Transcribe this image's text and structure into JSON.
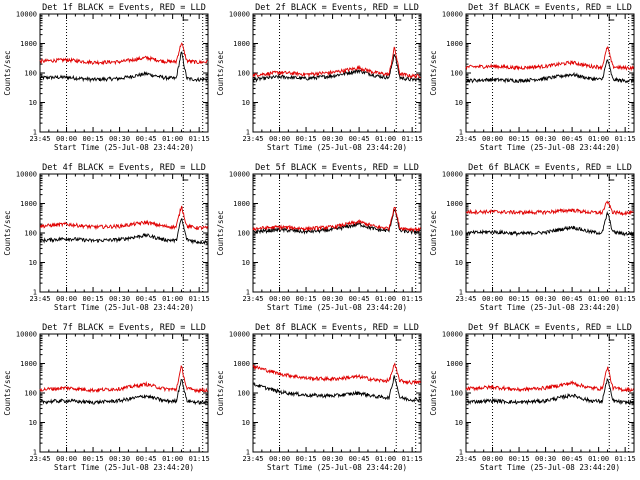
{
  "figure": {
    "rows": 3,
    "cols": 3,
    "colors": {
      "events": "#000000",
      "lld": "#e00000",
      "axes": "#000000",
      "background": "#ffffff"
    }
  },
  "chart_data": [
    {
      "type": "line",
      "title": "Det 1f BLACK = Events, RED = LLD",
      "xlabel": "Start Time (25-Jul-08 23:44:20)",
      "ylabel": "Counts/sec",
      "y_scale": "log",
      "ylim": [
        1,
        10000
      ],
      "xlim": [
        "23:45",
        "01:20"
      ],
      "x_tick_labels": [
        "23:45",
        "00:00",
        "00:15",
        "00:30",
        "00:45",
        "01:00",
        "01:15"
      ],
      "y_tick_labels": [
        "1",
        "10",
        "100",
        "1000",
        "10000"
      ],
      "dotted_vertical_lines": [
        "00:00",
        "01:06",
        "01:17"
      ],
      "grid": false,
      "x": [
        "23:45",
        "00:00",
        "00:15",
        "00:30",
        "00:45",
        "00:55",
        "01:02",
        "01:05",
        "01:08",
        "01:14",
        "01:20"
      ],
      "series": [
        {
          "name": "Events",
          "values": [
            70,
            72,
            60,
            65,
            95,
            70,
            65,
            520,
            65,
            60,
            62
          ]
        },
        {
          "name": "LLD",
          "values": [
            250,
            280,
            230,
            240,
            330,
            250,
            240,
            1100,
            260,
            230,
            240
          ]
        }
      ]
    },
    {
      "type": "line",
      "title": "Det 2f BLACK = Events, RED = LLD",
      "xlabel": "Start Time (25-Jul-08 23:44:20)",
      "ylabel": "Counts/sec",
      "y_scale": "log",
      "ylim": [
        1,
        10000
      ],
      "xlim": [
        "23:45",
        "01:20"
      ],
      "x_tick_labels": [
        "23:45",
        "00:00",
        "00:15",
        "00:30",
        "00:45",
        "01:00",
        "01:15"
      ],
      "y_tick_labels": [
        "1",
        "10",
        "100",
        "1000",
        "10000"
      ],
      "dotted_vertical_lines": [
        "00:00",
        "01:06",
        "01:17"
      ],
      "grid": false,
      "x": [
        "23:45",
        "00:00",
        "00:15",
        "00:30",
        "00:45",
        "00:55",
        "01:02",
        "01:05",
        "01:08",
        "01:14",
        "01:20"
      ],
      "series": [
        {
          "name": "Events",
          "values": [
            60,
            75,
            65,
            80,
            120,
            80,
            70,
            480,
            70,
            60,
            60
          ]
        },
        {
          "name": "LLD",
          "values": [
            85,
            105,
            90,
            105,
            150,
            100,
            90,
            750,
            95,
            80,
            80
          ]
        }
      ]
    },
    {
      "type": "line",
      "title": "Det 3f BLACK = Events, RED = LLD",
      "xlabel": "Start Time (25-Jul-08 23:44:20)",
      "ylabel": "Counts/sec",
      "y_scale": "log",
      "ylim": [
        1,
        10000
      ],
      "xlim": [
        "23:45",
        "01:20"
      ],
      "x_tick_labels": [
        "23:45",
        "00:00",
        "00:15",
        "00:30",
        "00:45",
        "01:00",
        "01:15"
      ],
      "y_tick_labels": [
        "1",
        "10",
        "100",
        "1000",
        "10000"
      ],
      "dotted_vertical_lines": [
        "00:00",
        "01:06",
        "01:17"
      ],
      "grid": false,
      "x": [
        "23:45",
        "00:00",
        "00:15",
        "00:30",
        "00:45",
        "00:55",
        "01:02",
        "01:05",
        "01:08",
        "01:14",
        "01:20"
      ],
      "series": [
        {
          "name": "Events",
          "values": [
            55,
            60,
            55,
            65,
            90,
            65,
            60,
            300,
            60,
            55,
            55
          ]
        },
        {
          "name": "LLD",
          "values": [
            160,
            170,
            150,
            170,
            230,
            170,
            160,
            800,
            165,
            150,
            150
          ]
        }
      ]
    },
    {
      "type": "line",
      "title": "Det 4f BLACK = Events, RED = LLD",
      "xlabel": "Start Time (25-Jul-08 23:44:20)",
      "ylabel": "Counts/sec",
      "y_scale": "log",
      "ylim": [
        1,
        10000
      ],
      "xlim": [
        "23:45",
        "01:20"
      ],
      "x_tick_labels": [
        "23:45",
        "00:00",
        "00:15",
        "00:30",
        "00:45",
        "01:00",
        "01:15"
      ],
      "y_tick_labels": [
        "1",
        "10",
        "100",
        "1000",
        "10000"
      ],
      "dotted_vertical_lines": [
        "00:00",
        "01:06",
        "01:17"
      ],
      "grid": false,
      "x": [
        "23:45",
        "00:00",
        "00:15",
        "00:30",
        "00:45",
        "00:55",
        "01:02",
        "01:05",
        "01:08",
        "01:14",
        "01:20"
      ],
      "series": [
        {
          "name": "Events",
          "values": [
            55,
            65,
            55,
            60,
            85,
            60,
            55,
            320,
            60,
            50,
            50
          ]
        },
        {
          "name": "LLD",
          "values": [
            170,
            200,
            160,
            170,
            230,
            170,
            160,
            850,
            170,
            150,
            150
          ]
        }
      ]
    },
    {
      "type": "line",
      "title": "Det 5f BLACK = Events, RED = LLD",
      "xlabel": "Start Time (25-Jul-08 23:44:20)",
      "ylabel": "Counts/sec",
      "y_scale": "log",
      "ylim": [
        1,
        10000
      ],
      "xlim": [
        "23:45",
        "01:20"
      ],
      "x_tick_labels": [
        "23:45",
        "00:00",
        "00:15",
        "00:30",
        "00:45",
        "01:00",
        "01:15"
      ],
      "y_tick_labels": [
        "1",
        "10",
        "100",
        "1000",
        "10000"
      ],
      "dotted_vertical_lines": [
        "00:00",
        "01:06",
        "01:17"
      ],
      "grid": false,
      "x": [
        "23:45",
        "00:00",
        "00:15",
        "00:30",
        "00:45",
        "00:55",
        "01:02",
        "01:05",
        "01:08",
        "01:14",
        "01:20"
      ],
      "series": [
        {
          "name": "Events",
          "values": [
            110,
            130,
            110,
            130,
            200,
            130,
            120,
            700,
            120,
            110,
            110
          ]
        },
        {
          "name": "LLD",
          "values": [
            140,
            160,
            140,
            160,
            240,
            160,
            145,
            850,
            150,
            135,
            135
          ]
        }
      ]
    },
    {
      "type": "line",
      "title": "Det 6f BLACK = Events, RED = LLD",
      "xlabel": "Start Time (25-Jul-08 23:44:20)",
      "ylabel": "Counts/sec",
      "y_scale": "log",
      "ylim": [
        1,
        10000
      ],
      "xlim": [
        "23:45",
        "01:20"
      ],
      "x_tick_labels": [
        "23:45",
        "00:00",
        "00:15",
        "00:30",
        "00:45",
        "01:00",
        "01:15"
      ],
      "y_tick_labels": [
        "1",
        "10",
        "100",
        "1000",
        "10000"
      ],
      "dotted_vertical_lines": [
        "00:00",
        "01:06",
        "01:17"
      ],
      "grid": false,
      "x": [
        "23:45",
        "00:00",
        "00:15",
        "00:30",
        "00:45",
        "00:55",
        "01:02",
        "01:05",
        "01:08",
        "01:14",
        "01:20"
      ],
      "series": [
        {
          "name": "Events",
          "values": [
            100,
            110,
            95,
            105,
            160,
            110,
            100,
            500,
            110,
            95,
            95
          ]
        },
        {
          "name": "LLD",
          "values": [
            520,
            530,
            500,
            510,
            600,
            500,
            490,
            1200,
            500,
            480,
            480
          ]
        }
      ]
    },
    {
      "type": "line",
      "title": "Det 7f BLACK = Events, RED = LLD",
      "xlabel": "Start Time (25-Jul-08 23:44:20)",
      "ylabel": "Counts/sec",
      "y_scale": "log",
      "ylim": [
        1,
        10000
      ],
      "xlim": [
        "23:45",
        "01:20"
      ],
      "x_tick_labels": [
        "23:45",
        "00:00",
        "00:15",
        "00:30",
        "00:45",
        "01:00",
        "01:15"
      ],
      "y_tick_labels": [
        "1",
        "10",
        "100",
        "1000",
        "10000"
      ],
      "dotted_vertical_lines": [
        "00:00",
        "01:06",
        "01:17"
      ],
      "grid": false,
      "x": [
        "23:45",
        "00:00",
        "00:15",
        "00:30",
        "00:45",
        "00:55",
        "01:02",
        "01:05",
        "01:08",
        "01:14",
        "01:20"
      ],
      "series": [
        {
          "name": "Events",
          "values": [
            50,
            55,
            48,
            55,
            80,
            55,
            52,
            320,
            55,
            48,
            48
          ]
        },
        {
          "name": "LLD",
          "values": [
            130,
            150,
            125,
            140,
            200,
            140,
            130,
            800,
            140,
            125,
            125
          ]
        }
      ]
    },
    {
      "type": "line",
      "title": "Det 8f BLACK = Events, RED = LLD",
      "xlabel": "Start Time (25-Jul-08 23:44:20)",
      "ylabel": "Counts/sec",
      "y_scale": "log",
      "ylim": [
        1,
        10000
      ],
      "xlim": [
        "23:45",
        "01:20"
      ],
      "x_tick_labels": [
        "23:45",
        "00:00",
        "00:15",
        "00:30",
        "00:45",
        "01:00",
        "01:15"
      ],
      "y_tick_labels": [
        "1",
        "10",
        "100",
        "1000",
        "10000"
      ],
      "dotted_vertical_lines": [
        "00:00",
        "01:06",
        "01:17"
      ],
      "grid": false,
      "x": [
        "23:45",
        "00:00",
        "00:15",
        "00:30",
        "00:45",
        "00:55",
        "01:02",
        "01:05",
        "01:08",
        "01:14",
        "01:20"
      ],
      "series": [
        {
          "name": "Events",
          "values": [
            200,
            110,
            85,
            80,
            100,
            75,
            70,
            400,
            70,
            60,
            60
          ]
        },
        {
          "name": "LLD",
          "values": [
            800,
            450,
            320,
            300,
            360,
            270,
            260,
            950,
            260,
            230,
            230
          ]
        }
      ]
    },
    {
      "type": "line",
      "title": "Det 9f BLACK = Events, RED = LLD",
      "xlabel": "Start Time (25-Jul-08 23:44:20)",
      "ylabel": "Counts/sec",
      "y_scale": "log",
      "ylim": [
        1,
        10000
      ],
      "xlim": [
        "23:45",
        "01:20"
      ],
      "x_tick_labels": [
        "23:45",
        "00:00",
        "00:15",
        "00:30",
        "00:45",
        "01:00",
        "01:15"
      ],
      "y_tick_labels": [
        "1",
        "10",
        "100",
        "1000",
        "10000"
      ],
      "dotted_vertical_lines": [
        "00:00",
        "01:06",
        "01:17"
      ],
      "grid": false,
      "x": [
        "23:45",
        "00:00",
        "00:15",
        "00:30",
        "00:45",
        "00:55",
        "01:02",
        "01:05",
        "01:08",
        "01:14",
        "01:20"
      ],
      "series": [
        {
          "name": "Events",
          "values": [
            50,
            55,
            48,
            55,
            85,
            55,
            52,
            320,
            55,
            48,
            48
          ]
        },
        {
          "name": "LLD",
          "values": [
            140,
            160,
            130,
            150,
            220,
            150,
            140,
            800,
            150,
            130,
            130
          ]
        }
      ]
    }
  ]
}
